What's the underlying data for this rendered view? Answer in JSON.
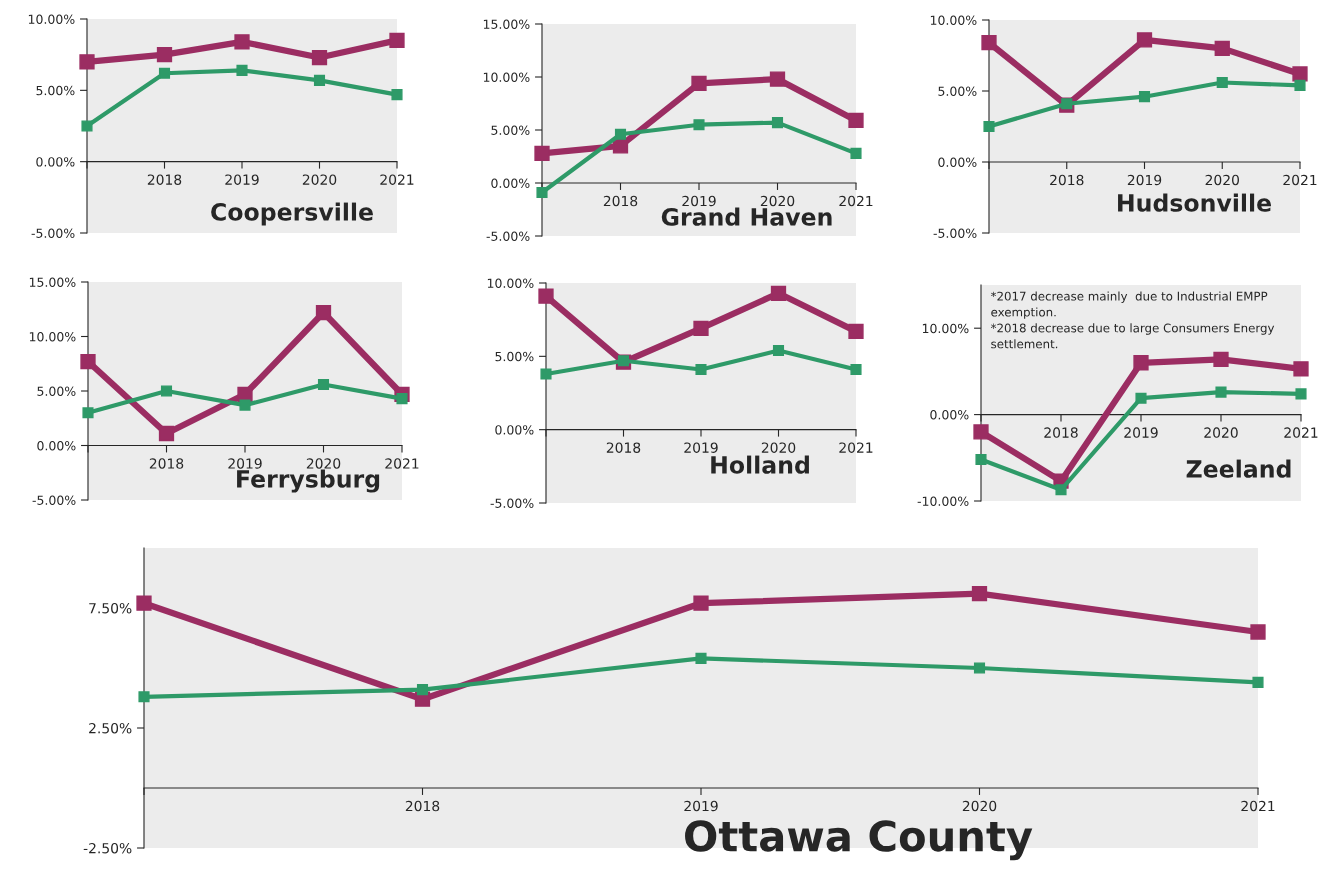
{
  "chart_data": [
    {
      "type": "line",
      "title": "Coopersville",
      "categories": [
        null,
        "2018",
        "2019",
        "2020",
        "2021"
      ],
      "marker": "square",
      "ylim": [
        -5,
        10
      ],
      "yticks": [
        {
          "value": -5,
          "label": "-5.00%"
        },
        {
          "value": 0,
          "label": "0.00%"
        },
        {
          "value": 5,
          "label": "5.00%"
        },
        {
          "value": 10,
          "label": "10.00%"
        }
      ],
      "series": [
        {
          "color": "#9b2d62",
          "values": [
            7.0,
            7.5,
            8.4,
            7.3,
            8.5
          ]
        },
        {
          "color": "#2e9a68",
          "values": [
            2.5,
            6.2,
            6.4,
            5.7,
            4.7
          ]
        }
      ]
    },
    {
      "type": "line",
      "title": "Grand Haven",
      "categories": [
        null,
        "2018",
        "2019",
        "2020",
        "2021"
      ],
      "marker": "square",
      "ylim": [
        -5,
        15
      ],
      "yticks": [
        {
          "value": -5,
          "label": "-5.00%"
        },
        {
          "value": 0,
          "label": "0.00%"
        },
        {
          "value": 5,
          "label": "5.00%"
        },
        {
          "value": 10,
          "label": "10.00%"
        },
        {
          "value": 15,
          "label": "15.00%"
        }
      ],
      "series": [
        {
          "color": "#9b2d62",
          "values": [
            2.8,
            3.5,
            9.4,
            9.8,
            5.9
          ]
        },
        {
          "color": "#2e9a68",
          "values": [
            -0.9,
            4.6,
            5.5,
            5.7,
            2.8
          ]
        }
      ]
    },
    {
      "type": "line",
      "title": "Hudsonville",
      "categories": [
        null,
        "2018",
        "2019",
        "2020",
        "2021"
      ],
      "marker": "square",
      "ylim": [
        -5,
        10
      ],
      "yticks": [
        {
          "value": -5,
          "label": "-5.00%"
        },
        {
          "value": 0,
          "label": "0.00%"
        },
        {
          "value": 5,
          "label": "5.00%"
        },
        {
          "value": 10,
          "label": "10.00%"
        }
      ],
      "series": [
        {
          "color": "#9b2d62",
          "values": [
            8.4,
            4.0,
            8.6,
            8.0,
            6.2
          ]
        },
        {
          "color": "#2e9a68",
          "values": [
            2.5,
            4.1,
            4.6,
            5.6,
            5.4
          ]
        }
      ]
    },
    {
      "type": "line",
      "title": "Ferrysburg",
      "categories": [
        null,
        "2018",
        "2019",
        "2020",
        "2021"
      ],
      "marker": "square",
      "ylim": [
        -5,
        15
      ],
      "yticks": [
        {
          "value": -5,
          "label": "-5.00%"
        },
        {
          "value": 0,
          "label": "0.00%"
        },
        {
          "value": 5,
          "label": "5.00%"
        },
        {
          "value": 10,
          "label": "10.00%"
        },
        {
          "value": 15,
          "label": "15.00%"
        }
      ],
      "series": [
        {
          "color": "#9b2d62",
          "values": [
            7.7,
            1.1,
            4.7,
            12.2,
            4.7
          ]
        },
        {
          "color": "#2e9a68",
          "values": [
            3.0,
            5.0,
            3.7,
            5.6,
            4.3
          ]
        }
      ]
    },
    {
      "type": "line",
      "title": "Holland",
      "categories": [
        null,
        "2018",
        "2019",
        "2020",
        "2021"
      ],
      "marker": "square",
      "ylim": [
        -5,
        10
      ],
      "yticks": [
        {
          "value": -5,
          "label": "-5.00%"
        },
        {
          "value": 0,
          "label": "0.00%"
        },
        {
          "value": 5,
          "label": "5.00%"
        },
        {
          "value": 10,
          "label": "10.00%"
        }
      ],
      "series": [
        {
          "color": "#9b2d62",
          "values": [
            9.1,
            4.6,
            6.9,
            9.3,
            6.7
          ]
        },
        {
          "color": "#2e9a68",
          "values": [
            3.8,
            4.7,
            4.1,
            5.4,
            4.1
          ]
        }
      ]
    },
    {
      "type": "line",
      "title": "Zeeland",
      "categories": [
        null,
        "2018",
        "2019",
        "2020",
        "2021"
      ],
      "marker": "square",
      "ylim": [
        -10,
        15
      ],
      "yticks": [
        {
          "value": -10,
          "label": "-10.00%"
        },
        {
          "value": 0,
          "label": "0.00%"
        },
        {
          "value": 10,
          "label": "10.00%"
        }
      ],
      "annotations": [
        "*2017 decrease mainly  due to Industrial EMPP exemption.",
        "*2018 decrease due to large Consumers Energy settlement."
      ],
      "series": [
        {
          "color": "#9b2d62",
          "values": [
            -2.0,
            -7.7,
            6.0,
            6.4,
            5.3
          ]
        },
        {
          "color": "#2e9a68",
          "values": [
            -5.2,
            -8.7,
            1.9,
            2.6,
            2.4
          ]
        }
      ]
    },
    {
      "type": "line",
      "title": "Ottawa County",
      "categories": [
        null,
        "2018",
        "2019",
        "2020",
        "2021"
      ],
      "marker": "square",
      "ylim": [
        -2.5,
        10
      ],
      "yticks": [
        {
          "value": -2.5,
          "label": "-2.50%"
        },
        {
          "value": 2.5,
          "label": "2.50%"
        },
        {
          "value": 7.5,
          "label": "7.50%"
        }
      ],
      "series": [
        {
          "color": "#9b2d62",
          "values": [
            7.7,
            3.7,
            7.7,
            8.1,
            6.5
          ]
        },
        {
          "color": "#2e9a68",
          "values": [
            3.8,
            4.1,
            5.4,
            5.0,
            4.4
          ]
        }
      ]
    }
  ]
}
